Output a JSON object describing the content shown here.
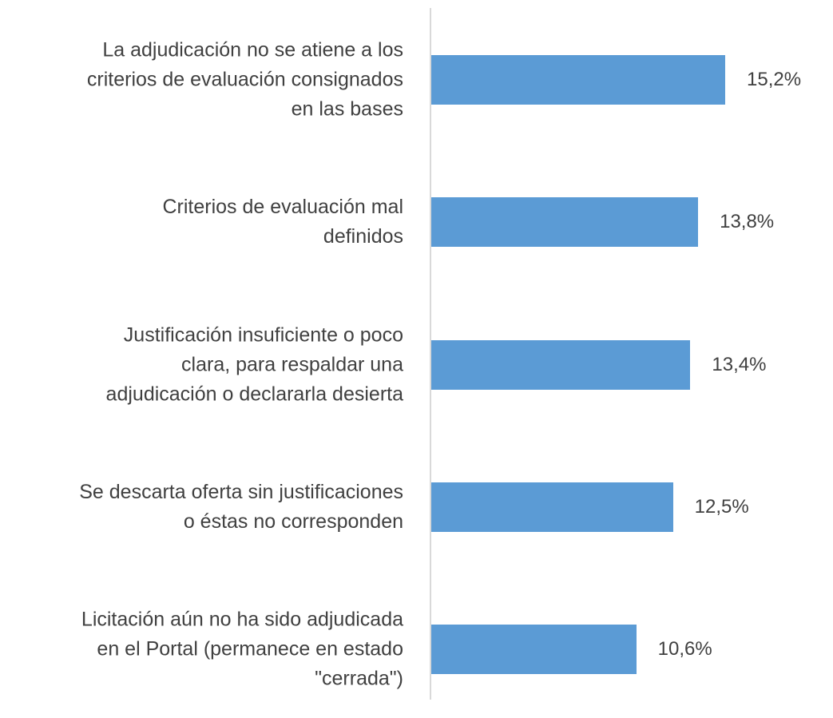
{
  "chart_data": {
    "type": "barh",
    "categories": [
      "La adjudicación no se atiene a los\ncriterios de evaluación consignados\nen las bases",
      "Criterios de evaluación mal\ndefinidos",
      "Justificación insuficiente o poco\nclara, para respaldar una\nadjudicación o declararla desierta",
      "Se descarta oferta sin justificaciones\no éstas no corresponden",
      "Licitación aún no ha sido adjudicada\nen el Portal (permanece en estado\n\"cerrada\")"
    ],
    "values": [
      15.2,
      13.8,
      13.4,
      12.5,
      10.6
    ],
    "value_labels": [
      "15,2%",
      "13,8%",
      "13,4%",
      "12,5%",
      "10,6%"
    ],
    "color": "#5b9bd5"
  }
}
